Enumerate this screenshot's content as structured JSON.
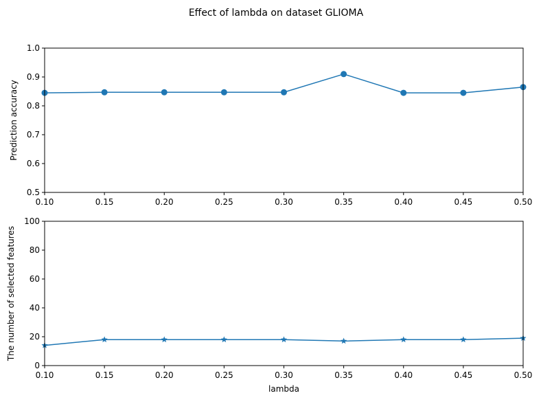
{
  "chart_data": {
    "title": "Effect of lambda on dataset GLIOMA",
    "colors": {
      "series": "#1f77b4",
      "axis": "#000000",
      "background": "#ffffff"
    },
    "subplots": [
      {
        "type": "line",
        "marker": "circle",
        "x": [
          0.1,
          0.15,
          0.2,
          0.25,
          0.3,
          0.35,
          0.4,
          0.45,
          0.5
        ],
        "y": [
          0.845,
          0.847,
          0.847,
          0.847,
          0.847,
          0.91,
          0.845,
          0.845,
          0.865
        ],
        "xlim": [
          0.1,
          0.5
        ],
        "ylim": [
          0.5,
          1.0
        ],
        "xticks": [
          0.1,
          0.15,
          0.2,
          0.25,
          0.3,
          0.35,
          0.4,
          0.45,
          0.5
        ],
        "xtick_labels": [
          "0.10",
          "0.15",
          "0.20",
          "0.25",
          "0.30",
          "0.35",
          "0.40",
          "0.45",
          "0.50"
        ],
        "yticks": [
          0.5,
          0.6,
          0.7,
          0.8,
          0.9,
          1.0
        ],
        "ytick_labels": [
          "0.5",
          "0.6",
          "0.7",
          "0.8",
          "0.9",
          "1.0"
        ],
        "xlabel": "",
        "ylabel": "Prediction accuracy",
        "grid": false
      },
      {
        "type": "line",
        "marker": "star",
        "x": [
          0.1,
          0.15,
          0.2,
          0.25,
          0.3,
          0.35,
          0.4,
          0.45,
          0.5
        ],
        "y": [
          14,
          18,
          18,
          18,
          18,
          17,
          18,
          18,
          19
        ],
        "xlim": [
          0.1,
          0.5
        ],
        "ylim": [
          0,
          100
        ],
        "xticks": [
          0.1,
          0.15,
          0.2,
          0.25,
          0.3,
          0.35,
          0.4,
          0.45,
          0.5
        ],
        "xtick_labels": [
          "0.10",
          "0.15",
          "0.20",
          "0.25",
          "0.30",
          "0.35",
          "0.40",
          "0.45",
          "0.50"
        ],
        "yticks": [
          0,
          20,
          40,
          60,
          80,
          100
        ],
        "ytick_labels": [
          "0",
          "20",
          "40",
          "60",
          "80",
          "100"
        ],
        "xlabel": "lambda",
        "ylabel": "The number of selected features",
        "grid": false
      }
    ]
  }
}
